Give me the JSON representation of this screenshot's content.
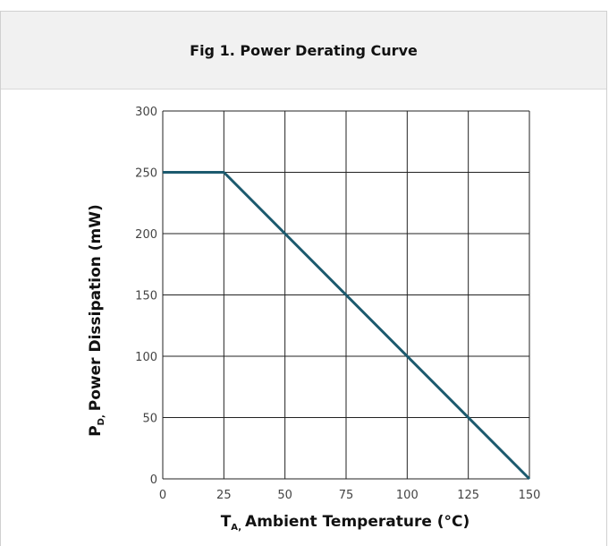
{
  "chart_data": {
    "type": "line",
    "title": "Fig 1. Power Derating Curve",
    "xlabel": {
      "symbol": "T",
      "subscript": "A,",
      "text": "Ambient Temperature (°C)"
    },
    "ylabel": {
      "symbol": "P",
      "subscript": "D,",
      "text": "Power Dissipation (mW)"
    },
    "xlim": [
      0,
      150
    ],
    "ylim": [
      0,
      300
    ],
    "xticks": [
      "0",
      "25",
      "50",
      "75",
      "100",
      "125",
      "150"
    ],
    "yticks": [
      "0",
      "50",
      "100",
      "150",
      "200",
      "250",
      "300"
    ],
    "grid": true,
    "series": [
      {
        "x": [
          0,
          25,
          150
        ],
        "y": [
          250,
          250,
          0
        ],
        "color": "#1c5a6e"
      }
    ]
  }
}
